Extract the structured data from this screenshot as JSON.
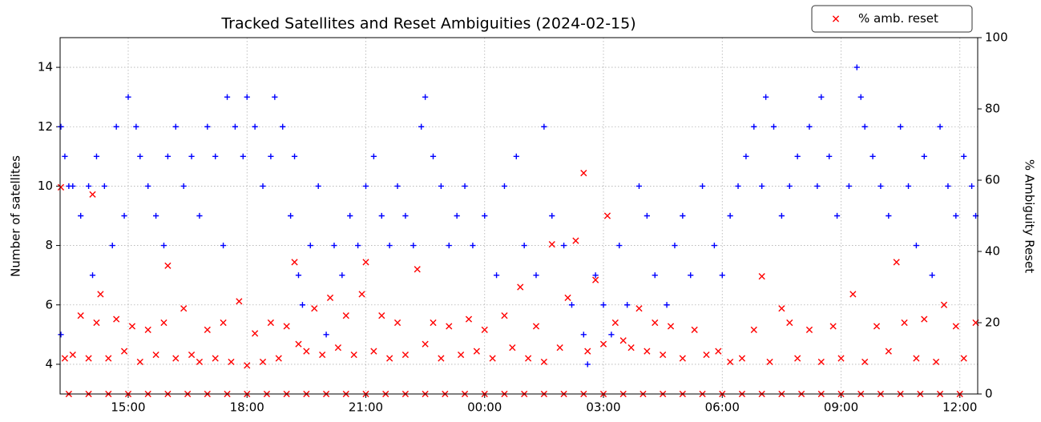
{
  "chart_data": {
    "type": "scatter",
    "title": "Tracked Satellites and Reset Ambiguities (2024-02-15)",
    "ylabel": "Number of satellites",
    "y2label": "% Ambiguity Reset",
    "xlim": [
      13.28,
      36.45
    ],
    "xticks": [
      {
        "value": 15,
        "label": "15:00"
      },
      {
        "value": 18,
        "label": "18:00"
      },
      {
        "value": 21,
        "label": "21:00"
      },
      {
        "value": 24,
        "label": "00:00"
      },
      {
        "value": 27,
        "label": "03:00"
      },
      {
        "value": 30,
        "label": "06:00"
      },
      {
        "value": 33,
        "label": "09:00"
      },
      {
        "value": 36,
        "label": "12:00"
      }
    ],
    "ylim": [
      3,
      15
    ],
    "yticks": [
      4,
      6,
      8,
      10,
      12,
      14
    ],
    "y2lim": [
      0,
      100
    ],
    "y2ticks": [
      0,
      20,
      40,
      60,
      80,
      100
    ],
    "grid": true,
    "legend": "upper right",
    "series": [
      {
        "color": "#0000ff",
        "marker": "+",
        "axis": "y",
        "x": [
          13.3,
          13.3,
          13.4,
          13.5,
          13.6,
          13.8,
          14.0,
          14.1,
          14.2,
          14.4,
          14.6,
          14.7,
          14.9,
          15.0,
          15.2,
          15.3,
          15.5,
          15.7,
          15.9,
          16.0,
          16.2,
          16.4,
          16.6,
          16.8,
          17.0,
          17.2,
          17.4,
          17.5,
          17.7,
          17.9,
          18.0,
          18.2,
          18.4,
          18.6,
          18.7,
          18.9,
          19.1,
          19.2,
          19.3,
          19.4,
          19.6,
          19.8,
          20.0,
          20.2,
          20.4,
          20.6,
          20.8,
          21.0,
          21.2,
          21.4,
          21.6,
          21.8,
          22.0,
          22.2,
          22.4,
          22.5,
          22.7,
          22.9,
          23.1,
          23.3,
          23.5,
          23.7,
          24.0,
          24.3,
          24.5,
          24.8,
          25.0,
          25.3,
          25.5,
          25.7,
          26.0,
          26.2,
          26.5,
          26.6,
          26.8,
          27.0,
          27.2,
          27.4,
          27.6,
          27.9,
          28.1,
          28.3,
          28.6,
          28.8,
          29.0,
          29.2,
          29.5,
          29.8,
          30.0,
          30.2,
          30.4,
          30.6,
          30.8,
          31.0,
          31.1,
          31.3,
          31.5,
          31.7,
          31.9,
          32.2,
          32.4,
          32.5,
          32.7,
          32.9,
          33.2,
          33.4,
          33.5,
          33.6,
          33.8,
          34.0,
          34.2,
          34.5,
          34.7,
          34.9,
          35.1,
          35.3,
          35.5,
          35.7,
          35.9,
          36.1,
          36.3,
          36.4
        ],
        "values": [
          12,
          5,
          11,
          10,
          10,
          9,
          10,
          7,
          11,
          10,
          8,
          12,
          9,
          13,
          12,
          11,
          10,
          9,
          8,
          11,
          12,
          10,
          11,
          9,
          12,
          11,
          8,
          13,
          12,
          11,
          13,
          12,
          10,
          11,
          13,
          12,
          9,
          11,
          7,
          6,
          8,
          10,
          5,
          8,
          7,
          9,
          8,
          10,
          11,
          9,
          8,
          10,
          9,
          8,
          12,
          13,
          11,
          10,
          8,
          9,
          10,
          8,
          9,
          7,
          10,
          11,
          8,
          7,
          12,
          9,
          8,
          6,
          5,
          4,
          7,
          6,
          5,
          8,
          6,
          10,
          9,
          7,
          6,
          8,
          9,
          7,
          10,
          8,
          7,
          9,
          10,
          11,
          12,
          10,
          13,
          12,
          9,
          10,
          11,
          12,
          10,
          13,
          11,
          9,
          10,
          14,
          13,
          12,
          11,
          10,
          9,
          12,
          10,
          8,
          11,
          7,
          12,
          10,
          9,
          11,
          10,
          9
        ]
      },
      {
        "name": "% amb. reset",
        "color": "#ff0000",
        "marker": "x",
        "axis": "y2",
        "x": [
          13.3,
          13.4,
          13.6,
          13.8,
          14.0,
          14.1,
          14.2,
          14.3,
          14.5,
          14.7,
          14.9,
          15.1,
          15.3,
          15.5,
          15.7,
          15.9,
          16.0,
          16.2,
          16.4,
          16.6,
          16.8,
          17.0,
          17.2,
          17.4,
          17.6,
          17.8,
          18.0,
          18.2,
          18.4,
          18.6,
          18.8,
          19.0,
          19.2,
          19.3,
          19.5,
          19.7,
          19.9,
          20.1,
          20.3,
          20.5,
          20.7,
          20.9,
          21.0,
          21.2,
          21.4,
          21.6,
          21.8,
          22.0,
          22.3,
          22.5,
          22.7,
          22.9,
          23.1,
          23.4,
          23.6,
          23.8,
          24.0,
          24.2,
          24.5,
          24.7,
          24.9,
          25.1,
          25.3,
          25.5,
          25.7,
          25.9,
          26.1,
          26.3,
          26.5,
          26.6,
          26.8,
          27.0,
          27.1,
          27.3,
          27.5,
          27.7,
          27.9,
          28.1,
          28.3,
          28.5,
          28.7,
          29.0,
          29.3,
          29.6,
          29.9,
          30.2,
          30.5,
          30.8,
          31.0,
          31.2,
          31.5,
          31.7,
          31.9,
          32.2,
          32.5,
          32.8,
          33.0,
          33.3,
          33.6,
          33.9,
          34.2,
          34.4,
          34.6,
          34.9,
          35.1,
          35.4,
          35.6,
          35.9,
          36.1,
          36.4
        ],
        "values": [
          58,
          10,
          11,
          22,
          10,
          56,
          20,
          28,
          10,
          21,
          12,
          19,
          9,
          18,
          11,
          20,
          36,
          10,
          24,
          11,
          9,
          18,
          10,
          20,
          9,
          26,
          8,
          17,
          9,
          20,
          10,
          19,
          37,
          14,
          12,
          24,
          11,
          27,
          13,
          22,
          11,
          28,
          37,
          12,
          22,
          10,
          20,
          11,
          35,
          14,
          20,
          10,
          19,
          11,
          21,
          12,
          18,
          10,
          22,
          13,
          30,
          10,
          19,
          9,
          42,
          13,
          27,
          43,
          62,
          12,
          32,
          14,
          50,
          20,
          15,
          13,
          24,
          12,
          20,
          11,
          19,
          10,
          18,
          11,
          12,
          9,
          10,
          18,
          33,
          9,
          24,
          20,
          10,
          18,
          9,
          19,
          10,
          28,
          9,
          19,
          12,
          37,
          20,
          10,
          21,
          9,
          25,
          19,
          10,
          20
        ]
      },
      {
        "color": "#ff0000",
        "marker": "x",
        "axis": "y2",
        "x": [
          13.5,
          14.0,
          14.5,
          15.0,
          15.5,
          16.0,
          16.5,
          17.0,
          17.5,
          18.0,
          18.5,
          19.0,
          19.5,
          20.0,
          20.5,
          21.0,
          21.5,
          22.0,
          22.5,
          23.0,
          23.5,
          24.0,
          24.5,
          25.0,
          25.5,
          26.0,
          26.5,
          27.0,
          27.5,
          28.0,
          28.5,
          29.0,
          29.5,
          30.0,
          30.5,
          31.0,
          31.5,
          32.0,
          32.5,
          33.0,
          33.5,
          34.0,
          34.5,
          35.0,
          35.5,
          36.0
        ],
        "values": [
          0,
          0,
          0,
          0,
          0,
          0,
          0,
          0,
          0,
          0,
          0,
          0,
          0,
          0,
          0,
          0,
          0,
          0,
          0,
          0,
          0,
          0,
          0,
          0,
          0,
          0,
          0,
          0,
          0,
          0,
          0,
          0,
          0,
          0,
          0,
          0,
          0,
          0,
          0,
          0,
          0,
          0,
          0,
          0,
          0,
          0
        ]
      }
    ]
  }
}
